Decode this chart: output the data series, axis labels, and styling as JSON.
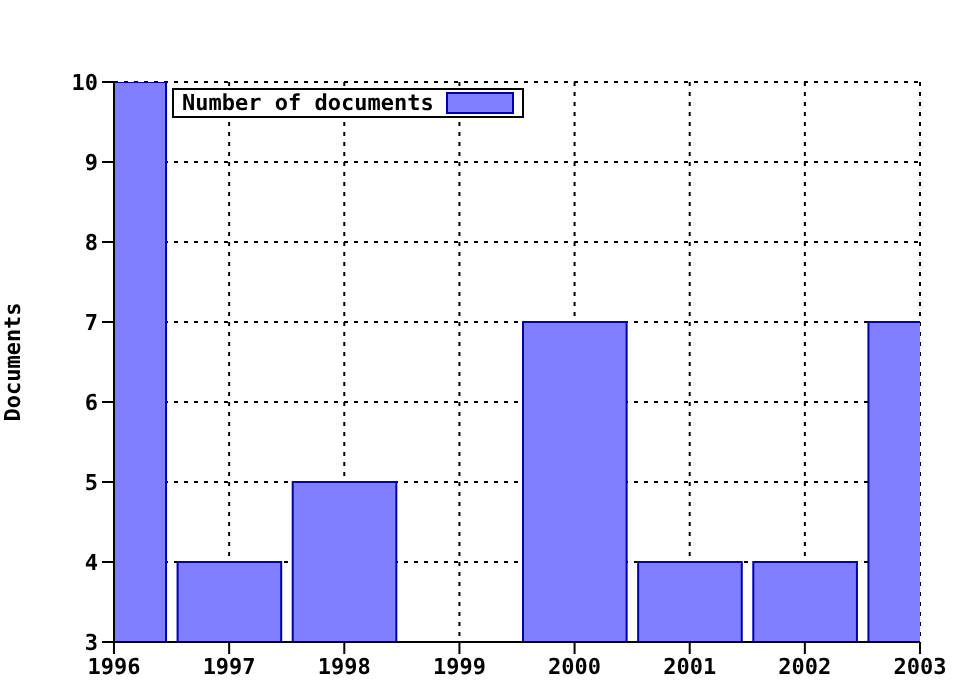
{
  "chart_data": {
    "type": "bar",
    "ylabel": "Documents",
    "x": [
      1996,
      1997,
      1998,
      1999,
      2000,
      2001,
      2002,
      2003
    ],
    "series": [
      {
        "name": "Number of documents",
        "color": "#7f7fff",
        "values": [
          10,
          4,
          5,
          3,
          7,
          4,
          4,
          7
        ]
      }
    ],
    "xlim": [
      1996,
      2003
    ],
    "xticks": [
      1996,
      1997,
      1998,
      1999,
      2000,
      2001,
      2002,
      2003
    ],
    "ylim": [
      3,
      10
    ],
    "yticks": [
      3,
      4,
      5,
      6,
      7,
      8,
      9,
      10
    ],
    "grid": true,
    "legend": "top left"
  }
}
